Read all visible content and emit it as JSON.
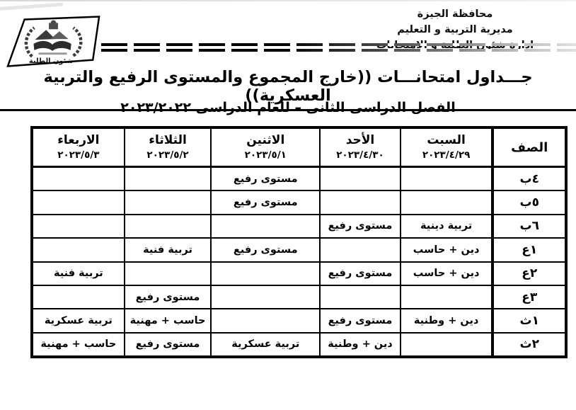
{
  "page": {
    "paper": "#ffffff",
    "ink": "#000000"
  },
  "header": {
    "org_lines": [
      "محافظة الجيزة",
      "مديرية التربية و التعليم",
      "ادارة شئون الطلبة و الامتحانات"
    ],
    "logo_caption": "شئون الطلبة"
  },
  "title": "جـــداول امتحانـــات ((خارج المجموع والمستوى الرفيع والتربية العسكرية))",
  "subtitle": "الفصل الدراسى الثانى – للعام الدراسى ٢٠٢٣/٢٠٢٢",
  "table": {
    "class_header": "الصف",
    "days": [
      {
        "name": "السبت",
        "date": "٢٠٢٣/٤/٢٩"
      },
      {
        "name": "الأحد",
        "date": "٢٠٢٣/٤/٣٠"
      },
      {
        "name": "الاثنين",
        "date": "٢٠٢٣/٥/١"
      },
      {
        "name": "الثلاثاء",
        "date": "٢٠٢٣/٥/٢"
      },
      {
        "name": "الاربعاء",
        "date": "٢٠٢٣/٥/٣"
      }
    ],
    "rows": [
      {
        "class": "٤ب",
        "cells": [
          "",
          "",
          "مستوى رفيع",
          "",
          ""
        ]
      },
      {
        "class": "٥ب",
        "cells": [
          "",
          "",
          "مستوى رفيع",
          "",
          ""
        ]
      },
      {
        "class": "٦ب",
        "cells": [
          "تربية دينية",
          "مستوى رفيع",
          "",
          "",
          ""
        ]
      },
      {
        "class": "١ع",
        "cells": [
          "دين + حاسب",
          "",
          "مستوى رفيع",
          "تربية فنية",
          ""
        ]
      },
      {
        "class": "٢ع",
        "cells": [
          "دين + حاسب",
          "مستوى رفيع",
          "",
          "",
          "تربية فنية"
        ]
      },
      {
        "class": "٣ع",
        "cells": [
          "",
          "",
          "",
          "مستوى رفيع",
          ""
        ]
      },
      {
        "class": "١ث",
        "cells": [
          "دين + وطنية",
          "مستوى رفيع",
          "",
          "حاسب + مهنية",
          "تربية عسكرية"
        ]
      },
      {
        "class": "٢ث",
        "cells": [
          "",
          "دين + وطنية",
          "تربية عسكرية",
          "مستوى رفيع",
          "حاسب + مهنية"
        ]
      }
    ]
  }
}
